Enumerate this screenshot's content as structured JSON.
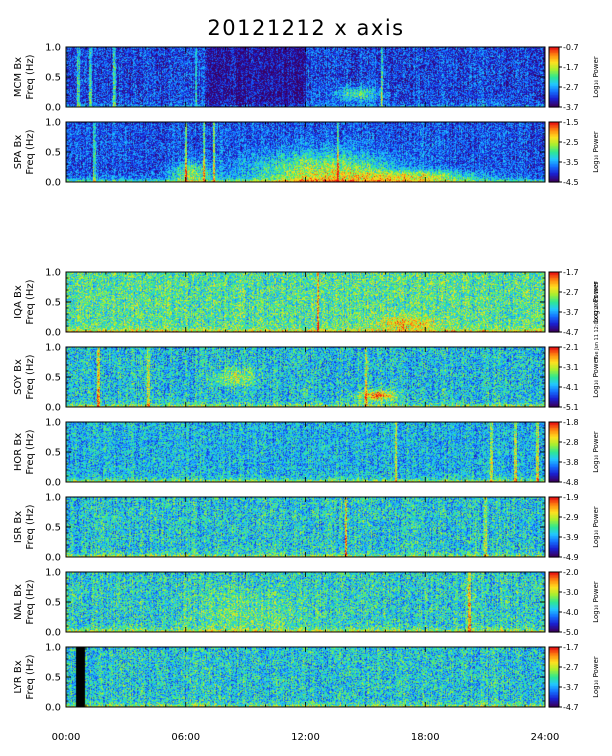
{
  "chart_data": {
    "type": "heatmap",
    "title": "20121212 x axis",
    "side_note": "Tue Jun 11 12:09:42 2013 1979",
    "x_tick_labels": [
      "00:00",
      "06:00",
      "12:00",
      "18:00",
      "24:00"
    ],
    "x_range_hours": [
      0,
      24
    ],
    "y_range_hz": [
      0.0,
      1.0
    ],
    "y_tick_labels": [
      "0.0",
      "0.5",
      "1.0"
    ],
    "colorbar_label": "Log₁₀ Power",
    "colormap": [
      "#3a0060",
      "#1a1fd0",
      "#1470ff",
      "#22c8ff",
      "#30e890",
      "#a8f030",
      "#ffe020",
      "#ff8810",
      "#e81010"
    ],
    "panels": [
      {
        "name": "MCM Bx",
        "ylabel": "Freq (Hz)",
        "cbar_ticks": [
          "-0.7",
          "-1.7",
          "-2.7",
          "-3.7"
        ],
        "cbar_range": [
          -3.7,
          -0.7
        ],
        "baseline": 0.18,
        "noise": 0.18,
        "quiet": [
          [
            7,
            12,
            0.12
          ]
        ],
        "gap_hours": [],
        "lines": [
          [
            0.6,
            0.35
          ],
          [
            1.2,
            0.3
          ],
          [
            2.4,
            0.3
          ],
          [
            6.5,
            0.25
          ],
          [
            15.8,
            0.4
          ]
        ],
        "blobs": [
          [
            14.6,
            0.22,
            1.2,
            0.12,
            0.35
          ]
        ],
        "ground": 0.25
      },
      {
        "name": "SPA Bx",
        "ylabel": "Freq (Hz)",
        "cbar_ticks": [
          "-1.5",
          "-2.5",
          "-3.5",
          "-4.5"
        ],
        "cbar_range": [
          -4.5,
          -1.5
        ],
        "baseline": 0.2,
        "noise": 0.17,
        "quiet": [],
        "gap_hours": [],
        "lines": [
          [
            1.4,
            0.35
          ],
          [
            6.0,
            0.45
          ],
          [
            6.9,
            0.45
          ],
          [
            7.4,
            0.4
          ],
          [
            13.6,
            0.4
          ]
        ],
        "blobs": [
          [
            12.8,
            0.15,
            3.5,
            0.35,
            0.5
          ],
          [
            17.5,
            0.1,
            3.0,
            0.1,
            0.45
          ],
          [
            6.3,
            0.15,
            1.0,
            0.2,
            0.4
          ]
        ],
        "ground": 0.6
      },
      {
        "name": "IQA Bx",
        "ylabel": "Freq (Hz)",
        "cbar_ticks": [
          "-1.7",
          "-2.7",
          "-3.7",
          "-4.7"
        ],
        "cbar_range": [
          -4.7,
          -1.7
        ],
        "baseline": 0.5,
        "noise": 0.22,
        "quiet": [],
        "gap_hours": [],
        "lines": [
          [
            12.6,
            0.35
          ]
        ],
        "blobs": [
          [
            17.0,
            0.15,
            1.5,
            0.12,
            0.3
          ]
        ],
        "ground": 0.45
      },
      {
        "name": "SOY Bx",
        "ylabel": "Freq (Hz)",
        "cbar_ticks": [
          "-2.1",
          "-3.1",
          "-4.1",
          "-5.1"
        ],
        "cbar_range": [
          -5.1,
          -2.1
        ],
        "baseline": 0.38,
        "noise": 0.22,
        "quiet": [],
        "gap_hours": [],
        "lines": [
          [
            1.6,
            0.5
          ],
          [
            4.1,
            0.35
          ],
          [
            15.0,
            0.4
          ]
        ],
        "blobs": [
          [
            15.6,
            0.2,
            0.9,
            0.08,
            0.55
          ],
          [
            8.5,
            0.5,
            1.0,
            0.15,
            0.25
          ]
        ],
        "ground": 0.45
      },
      {
        "name": "HOR Bx",
        "ylabel": "Freq (Hz)",
        "cbar_ticks": [
          "-1.8",
          "-2.8",
          "-3.8",
          "-4.8"
        ],
        "cbar_range": [
          -4.8,
          -1.8
        ],
        "baseline": 0.36,
        "noise": 0.2,
        "quiet": [],
        "gap_hours": [],
        "lines": [
          [
            16.5,
            0.4
          ],
          [
            21.3,
            0.35
          ],
          [
            22.5,
            0.35
          ],
          [
            23.6,
            0.35
          ]
        ],
        "blobs": [],
        "ground": 0.5
      },
      {
        "name": "ISR Bx",
        "ylabel": "Freq (Hz)",
        "cbar_ticks": [
          "-1.9",
          "-2.9",
          "-3.9",
          "-4.9"
        ],
        "cbar_range": [
          -4.9,
          -1.9
        ],
        "baseline": 0.4,
        "noise": 0.22,
        "quiet": [],
        "gap_hours": [],
        "lines": [
          [
            14.0,
            0.55
          ],
          [
            21.0,
            0.3
          ]
        ],
        "blobs": [],
        "ground": 0.4
      },
      {
        "name": "NAL Bx",
        "ylabel": "Freq (Hz)",
        "cbar_ticks": [
          "-2.0",
          "-3.0",
          "-4.0",
          "-5.0"
        ],
        "cbar_range": [
          -5.0,
          -2.0
        ],
        "baseline": 0.42,
        "noise": 0.22,
        "quiet": [],
        "gap_hours": [],
        "lines": [
          [
            20.2,
            0.45
          ]
        ],
        "blobs": [
          [
            9.0,
            0.3,
            3.0,
            0.4,
            0.12
          ]
        ],
        "ground": 0.45
      },
      {
        "name": "LYR Bx",
        "ylabel": "Freq (Hz)",
        "cbar_ticks": [
          "-1.7",
          "-2.7",
          "-3.7",
          "-4.7"
        ],
        "cbar_range": [
          -4.7,
          -1.7
        ],
        "baseline": 0.4,
        "noise": 0.22,
        "quiet": [],
        "gap_hours": [
          [
            0.5,
            0.95
          ]
        ],
        "lines": [],
        "blobs": [],
        "ground": 0.4
      }
    ]
  }
}
